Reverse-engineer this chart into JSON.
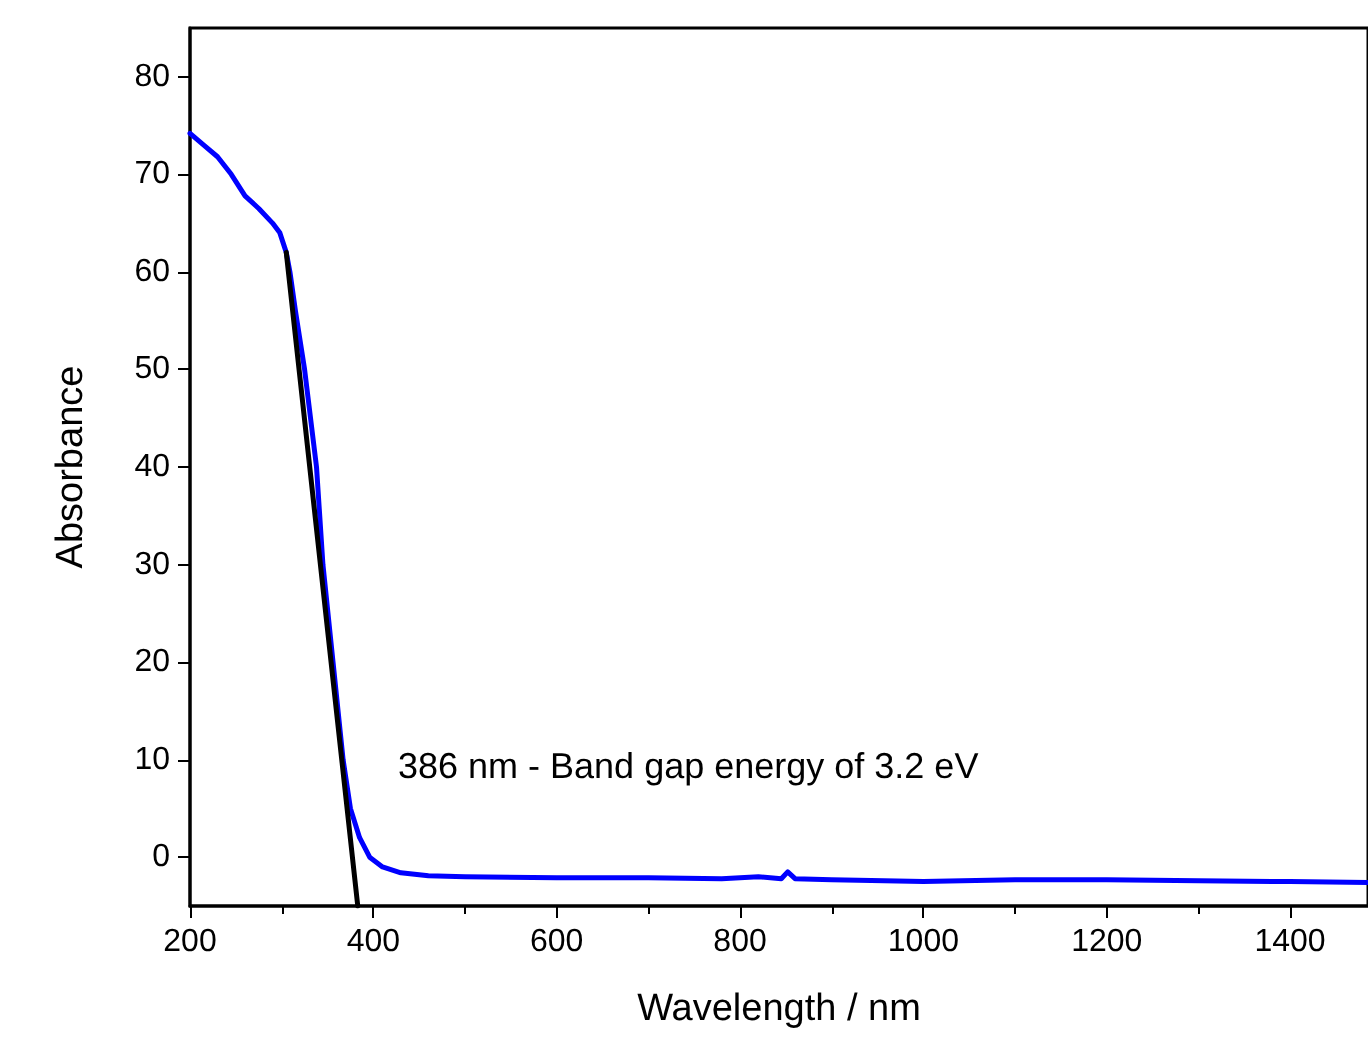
{
  "chart_data": {
    "type": "line",
    "xlabel": "Wavelength / nm",
    "ylabel": "Absorbance",
    "xlim": [
      200,
      1485
    ],
    "ylim": [
      -5,
      85
    ],
    "xticks": [
      200,
      400,
      600,
      800,
      1000,
      1200,
      1400
    ],
    "yticks": [
      0,
      10,
      20,
      30,
      40,
      50,
      60,
      70,
      80
    ],
    "grid": false,
    "marker": "none",
    "line_style": "solid",
    "series": [
      {
        "color": "#0000ff",
        "x": [
          200,
          215,
          230,
          245,
          260,
          275,
          290,
          298,
          305,
          309,
          315,
          325,
          338,
          345,
          356,
          367,
          375,
          385,
          396,
          410,
          430,
          460,
          500,
          600,
          700,
          780,
          820,
          845,
          852,
          860,
          900,
          1000,
          1100,
          1200,
          1300,
          1400,
          1485
        ],
        "values": [
          74.2,
          73,
          71.8,
          70,
          67.8,
          66.5,
          65,
          64,
          62,
          60,
          56,
          50,
          40,
          30,
          20,
          10,
          5,
          2,
          0,
          -1,
          -1.6,
          -1.9,
          -2,
          -2.1,
          -2.1,
          -2.2,
          -2.0,
          -2.2,
          -1.5,
          -2.2,
          -2.3,
          -2.5,
          -2.3,
          -2.3,
          -2.4,
          -2.5,
          -2.6
        ]
      },
      {
        "color": "#000000",
        "x": [
          305,
          383
        ],
        "values": [
          62,
          -5
        ]
      }
    ],
    "annotations": [
      "386 nm - Band gap energy of 3.2 eV"
    ]
  }
}
